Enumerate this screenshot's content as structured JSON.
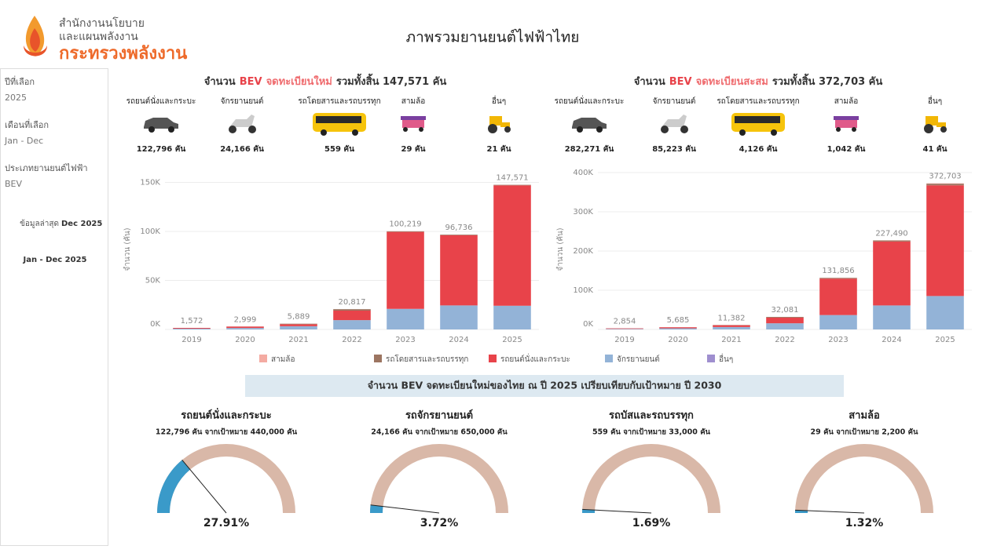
{
  "header": {
    "org": [
      "สำนักงานนโยบาย",
      "และแผนพลังงาน",
      "กระทรวงพลังงาน"
    ],
    "title": "ภาพรวมยานยนต์ไฟฟ้าไทย"
  },
  "sidebar": {
    "items": [
      {
        "label": "ปีที่เลือก",
        "value": "2025"
      },
      {
        "label": "เดือนที่เลือก",
        "value": "Jan - Dec"
      },
      {
        "label": "ประเภทยานยนต์ไฟฟ้า",
        "value": "BEV"
      }
    ],
    "latest_label": "ข้อมูลล่าสุด",
    "latest_value": "Dec 2025",
    "period": "Jan - Dec 2025"
  },
  "banner": "จำนวน BEV จดทะเบียนใหม่ของไทย ณ ปี 2025 เปรียบเทียบกับเป้าหมาย ปี 2030",
  "chart_data": [
    {
      "type": "stacked_bar",
      "title": [
        "จำนวน",
        "BEV",
        "จดทะเบียนใหม่",
        "รวมทั้งสิ้น 147,571 คัน"
      ],
      "ylabel": "จำนวน (คัน)",
      "summary": [
        {
          "name": "รถยนต์นั่งและกระบะ",
          "label": "122,796 คัน"
        },
        {
          "name": "จักรยานยนต์",
          "label": "24,166 คัน"
        },
        {
          "name": "รถโดยสารและรถบรรทุก",
          "label": "559 คัน"
        },
        {
          "name": "สามล้อ",
          "label": "29 คัน"
        },
        {
          "name": "อื่นๆ",
          "label": "21 คัน"
        }
      ],
      "categories": [
        "2019",
        "2020",
        "2021",
        "2022",
        "2023",
        "2024",
        "2025"
      ],
      "series": [
        {
          "name": "สามล้อ",
          "color": "#f4aba2",
          "values": [
            1,
            5,
            20,
            100,
            100,
            70,
            29
          ]
        },
        {
          "name": "รถโดยสารและรถบรรทุก",
          "color": "#9c7561",
          "values": [
            10,
            40,
            560,
            1500,
            600,
            650,
            559
          ]
        },
        {
          "name": "รถยนต์นั่งและกระบะ",
          "color": "#e8434a",
          "values": [
            760,
            1450,
            2000,
            9700,
            78500,
            71500,
            122796
          ]
        },
        {
          "name": "จักรยานยนต์",
          "color": "#93b3d7",
          "values": [
            800,
            1500,
            3300,
            9500,
            21000,
            24500,
            24166
          ]
        },
        {
          "name": "อื่นๆ",
          "color": "#9f8fcf",
          "values": [
            1,
            4,
            9,
            17,
            19,
            16,
            21
          ]
        }
      ],
      "totals": {
        "values": [
          1572,
          2999,
          5889,
          20817,
          100219,
          96736,
          147571
        ],
        "value_labels": [
          "1,572",
          "2,999",
          "5,889",
          "20,817",
          "100,219",
          "96,736",
          "147,571"
        ]
      },
      "ylim": [
        0,
        160000
      ],
      "yticks": [
        {
          "value": 0,
          "label": "0K"
        },
        {
          "value": 50000,
          "label": "50K"
        },
        {
          "value": 100000,
          "label": "100K"
        },
        {
          "value": 150000,
          "label": "150K"
        }
      ],
      "grid": true
    },
    {
      "type": "stacked_bar",
      "title": [
        "จำนวน",
        "BEV",
        "จดทะเบียนสะสม",
        "รวมทั้งสิ้น 372,703 คัน"
      ],
      "ylabel": "จำนวน (คัน)",
      "summary": [
        {
          "name": "รถยนต์นั่งและกระบะ",
          "label": "282,271 คัน"
        },
        {
          "name": "จักรยานยนต์",
          "label": "85,223 คัน"
        },
        {
          "name": "รถโดยสารและรถบรรทุก",
          "label": "4,126 คัน"
        },
        {
          "name": "สามล้อ",
          "label": "1,042 คัน"
        },
        {
          "name": "อื่นๆ",
          "label": "41 คัน"
        }
      ],
      "categories": [
        "2019",
        "2020",
        "2021",
        "2022",
        "2023",
        "2024",
        "2025"
      ],
      "series": [
        {
          "color": "#f4aba2",
          "values": [
            2,
            5,
            25,
            170,
            280,
            560,
            1042
          ]
        },
        {
          "color": "#9c7561",
          "values": [
            50,
            75,
            550,
            1900,
            2050,
            2700,
            4126
          ]
        },
        {
          "color": "#e8434a",
          "values": [
            1400,
            2700,
            4600,
            14300,
            92800,
            163000,
            282271
          ]
        },
        {
          "color": "#93b3d7",
          "values": [
            1400,
            2900,
            6200,
            15700,
            36700,
            61200,
            85223
          ]
        },
        {
          "color": "#9f8fcf",
          "values": [
            2,
            5,
            7,
            11,
            26,
            30,
            41
          ]
        }
      ],
      "totals": {
        "values": [
          2854,
          5685,
          11382,
          32081,
          131856,
          227490,
          372703
        ],
        "value_labels": [
          "2,854",
          "5,685",
          "11,382",
          "32,081",
          "131,856",
          "227,490",
          "372,703"
        ]
      },
      "ylim": [
        0,
        400000
      ],
      "yticks": [
        {
          "value": 0,
          "label": "0K"
        },
        {
          "value": 100000,
          "label": "100K"
        },
        {
          "value": 200000,
          "label": "200K"
        },
        {
          "value": 300000,
          "label": "300K"
        },
        {
          "value": 400000,
          "label": "400K"
        }
      ],
      "grid": true
    },
    {
      "type": "gauge",
      "title": "รถยนต์นั่งและกระบะ",
      "subtitle": "122,796 คัน จากเป้าหมาย 440,000 คัน",
      "value": 27.91,
      "value_label": "27.91%",
      "ylim": [
        0,
        100
      ],
      "color": "#3a9ac9"
    },
    {
      "type": "gauge",
      "title": "รถจักรยานยนต์",
      "subtitle": "24,166 คัน จากเป้าหมาย 650,000 คัน",
      "value": 3.72,
      "value_label": "3.72%",
      "ylim": [
        0,
        100
      ],
      "color": "#3a9ac9"
    },
    {
      "type": "gauge",
      "title": "รถบัสและรถบรรทุก",
      "subtitle": "559 คัน จากเป้าหมาย 33,000 คัน",
      "value": 1.69,
      "value_label": "1.69%",
      "ylim": [
        0,
        100
      ],
      "color": "#3a9ac9"
    },
    {
      "type": "gauge",
      "title": "สามล้อ",
      "subtitle": "29 คัน จากเป้าหมาย 2,200 คัน",
      "value": 1.32,
      "value_label": "1.32%",
      "ylim": [
        0,
        100
      ],
      "color": "#3a9ac9"
    }
  ]
}
